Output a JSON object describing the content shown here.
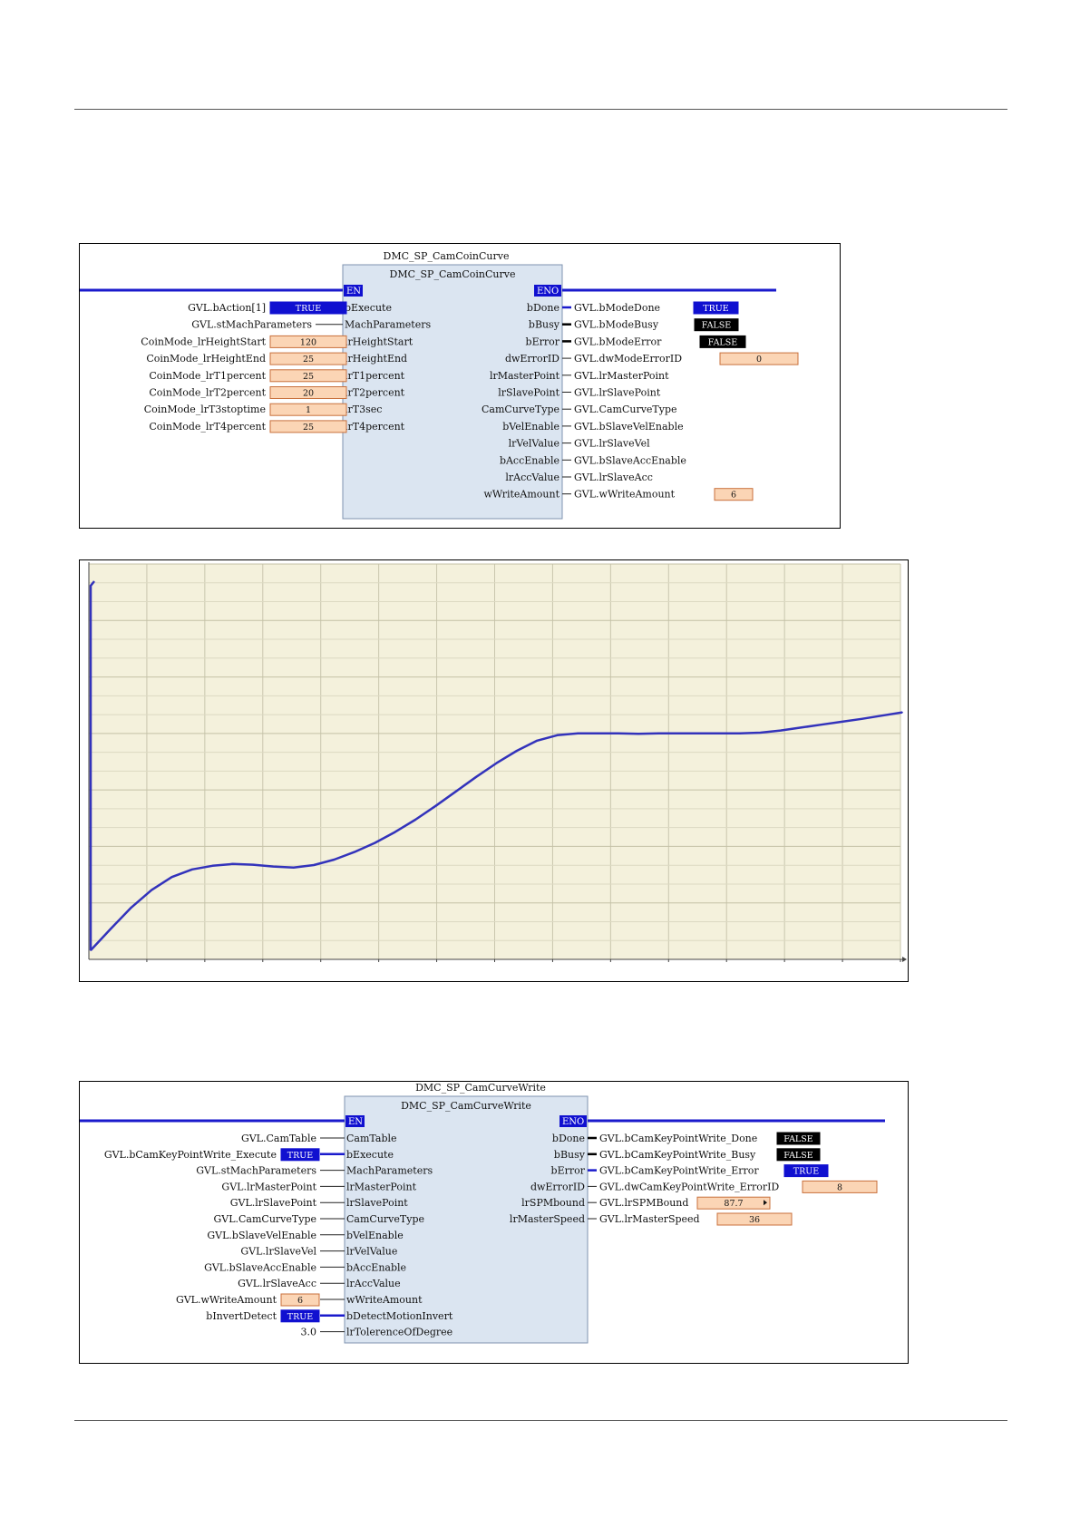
{
  "fb1": {
    "instance_title": "DMC_SP_CamCoinCurve",
    "type_name": "DMC_SP_CamCoinCurve",
    "en_label": "EN",
    "eno_label": "ENO",
    "inputs": [
      {
        "var": "GVL.bAction[1]",
        "pin": "bExecute",
        "value": "TRUE",
        "kind": "bool-true"
      },
      {
        "var": "GVL.stMachParameters",
        "pin": "MachParameters",
        "value": null,
        "kind": "none"
      },
      {
        "var": "CoinMode_lrHeightStart",
        "pin": "lrHeightStart",
        "value": "120",
        "kind": "num"
      },
      {
        "var": "CoinMode_lrHeightEnd",
        "pin": "lrHeightEnd",
        "value": "25",
        "kind": "num"
      },
      {
        "var": "CoinMode_lrT1percent",
        "pin": "lrT1percent",
        "value": "25",
        "kind": "num"
      },
      {
        "var": "CoinMode_lrT2percent",
        "pin": "lrT2percent",
        "value": "20",
        "kind": "num"
      },
      {
        "var": "CoinMode_lrT3stoptime",
        "pin": "lrT3sec",
        "value": "1",
        "kind": "num"
      },
      {
        "var": "CoinMode_lrT4percent",
        "pin": "lrT4percent",
        "value": "25",
        "kind": "num"
      }
    ],
    "outputs": [
      {
        "pin": "bDone",
        "var": "GVL.bModeDone",
        "value": "TRUE",
        "kind": "bool-true"
      },
      {
        "pin": "bBusy",
        "var": "GVL.bModeBusy",
        "value": "FALSE",
        "kind": "bool-false"
      },
      {
        "pin": "bError",
        "var": "GVL.bModeError",
        "value": "FALSE",
        "kind": "bool-false"
      },
      {
        "pin": "dwErrorID",
        "var": "GVL.dwModeErrorID",
        "value": "0",
        "kind": "num"
      },
      {
        "pin": "lrMasterPoint",
        "var": "GVL.lrMasterPoint",
        "value": null,
        "kind": "none"
      },
      {
        "pin": "lrSlavePoint",
        "var": "GVL.lrSlavePoint",
        "value": null,
        "kind": "none"
      },
      {
        "pin": "CamCurveType",
        "var": "GVL.CamCurveType",
        "value": null,
        "kind": "none"
      },
      {
        "pin": "bVelEnable",
        "var": "GVL.bSlaveVelEnable",
        "value": null,
        "kind": "none"
      },
      {
        "pin": "lrVelValue",
        "var": "GVL.lrSlaveVel",
        "value": null,
        "kind": "none"
      },
      {
        "pin": "bAccEnable",
        "var": "GVL.bSlaveAccEnable",
        "value": null,
        "kind": "none"
      },
      {
        "pin": "lrAccValue",
        "var": "GVL.lrSlaveAcc",
        "value": null,
        "kind": "none"
      },
      {
        "pin": "wWriteAmount",
        "var": "GVL.wWriteAmount",
        "value": "6",
        "kind": "num"
      }
    ]
  },
  "fb2": {
    "instance_title": "DMC_SP_CamCurveWrite",
    "type_name": "DMC_SP_CamCurveWrite",
    "en_label": "EN",
    "eno_label": "ENO",
    "inputs": [
      {
        "var": "GVL.CamTable",
        "pin": "CamTable",
        "value": null,
        "kind": "none"
      },
      {
        "var": "GVL.bCamKeyPointWrite_Execute",
        "pin": "bExecute",
        "value": "TRUE",
        "kind": "bool-true"
      },
      {
        "var": "GVL.stMachParameters",
        "pin": "MachParameters",
        "value": null,
        "kind": "none"
      },
      {
        "var": "GVL.lrMasterPoint",
        "pin": "lrMasterPoint",
        "value": null,
        "kind": "none"
      },
      {
        "var": "GVL.lrSlavePoint",
        "pin": "lrSlavePoint",
        "value": null,
        "kind": "none"
      },
      {
        "var": "GVL.CamCurveType",
        "pin": "CamCurveType",
        "value": null,
        "kind": "none"
      },
      {
        "var": "GVL.bSlaveVelEnable",
        "pin": "bVelEnable",
        "value": null,
        "kind": "none"
      },
      {
        "var": "GVL.lrSlaveVel",
        "pin": "lrVelValue",
        "value": null,
        "kind": "none"
      },
      {
        "var": "GVL.bSlaveAccEnable",
        "pin": "bAccEnable",
        "value": null,
        "kind": "none"
      },
      {
        "var": "GVL.lrSlaveAcc",
        "pin": "lrAccValue",
        "value": null,
        "kind": "none"
      },
      {
        "var": "GVL.wWriteAmount",
        "pin": "wWriteAmount",
        "value": "6",
        "kind": "num"
      },
      {
        "var": "bInvertDetect",
        "pin": "bDetectMotionInvert",
        "value": "TRUE",
        "kind": "bool-true"
      },
      {
        "var": "3.0",
        "pin": "lrTolerenceOfDegree",
        "value": null,
        "kind": "none"
      }
    ],
    "outputs": [
      {
        "pin": "bDone",
        "var": "GVL.bCamKeyPointWrite_Done",
        "value": "FALSE",
        "kind": "bool-false"
      },
      {
        "pin": "bBusy",
        "var": "GVL.bCamKeyPointWrite_Busy",
        "value": "FALSE",
        "kind": "bool-false"
      },
      {
        "pin": "bError",
        "var": "GVL.bCamKeyPointWrite_Error",
        "value": "TRUE",
        "kind": "bool-true"
      },
      {
        "pin": "dwErrorID",
        "var": "GVL.dwCamKeyPointWrite_ErrorID",
        "value": "8",
        "kind": "num"
      },
      {
        "pin": "lrSPMbound",
        "var": "GVL.lrSPMBound",
        "value": "87.7",
        "kind": "num-arrow"
      },
      {
        "pin": "lrMasterSpeed",
        "var": "GVL.lrMasterSpeed",
        "value": "36",
        "kind": "num"
      }
    ]
  },
  "colors": {
    "true_bg": "#1010d0",
    "false_bg": "#000000",
    "value_bg": "#fbd5b5",
    "value_border": "#c8703c",
    "block_fill": "#dbe5f1",
    "block_border": "#7f93b0",
    "power_rail": "#1a1acc",
    "plot_bg": "#f4f1dc",
    "curve": "#3333bb"
  },
  "chart_data": {
    "type": "line",
    "title": "",
    "xlabel": "",
    "ylabel": "",
    "grid": true,
    "xlim": [
      0,
      100
    ],
    "ylim": [
      0,
      100
    ],
    "x": [
      0.0,
      2.5,
      5,
      7.5,
      10,
      12.5,
      15,
      17.5,
      20,
      22.5,
      25,
      27.5,
      30,
      32.5,
      35,
      37.5,
      40,
      42.5,
      45,
      47.5,
      50,
      52.5,
      55,
      57.5,
      60,
      62.5,
      65,
      67.5,
      70,
      72.5,
      75,
      77.5,
      80,
      82.5,
      85,
      87.5,
      90,
      92.5,
      95,
      97.5,
      100
    ],
    "series": [
      {
        "values": [
          0,
          6.0,
          11.8,
          16.6,
          20.2,
          22.3,
          23.3,
          23.8,
          23.6,
          23.1,
          22.8,
          23.5,
          25.0,
          27.1,
          29.6,
          32.6,
          36.0,
          39.8,
          43.8,
          47.8,
          51.6,
          55.0,
          57.8,
          59.3,
          59.8,
          59.8,
          59.8,
          59.7,
          59.8,
          59.8,
          59.8,
          59.8,
          59.8,
          60.0,
          60.6,
          61.4,
          62.2,
          63.0,
          63.8,
          64.7,
          65.6
        ]
      }
    ],
    "start_spike": [
      0,
      89,
      91
    ]
  }
}
